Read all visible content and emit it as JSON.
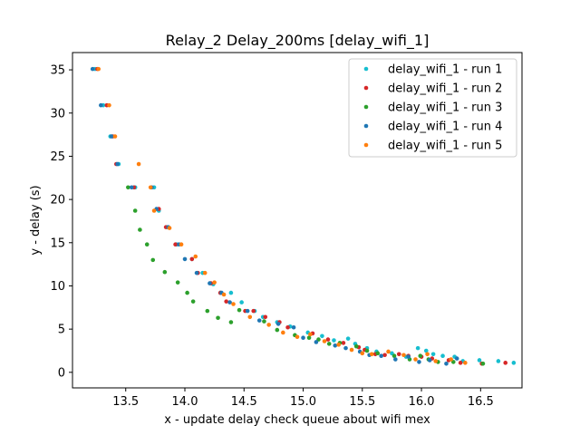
{
  "chart_data": {
    "type": "scatter",
    "title": "Relay_2 Delay_200ms [delay_wifi_1]",
    "xlabel": "x - update delay check queue about wifi mex",
    "ylabel": "y - delay (s)",
    "xlim": [
      13.05,
      16.85
    ],
    "ylim": [
      -1.8,
      37.0
    ],
    "xticks": [
      13.5,
      14.0,
      14.5,
      15.0,
      15.5,
      16.0,
      16.5
    ],
    "xtick_labels": [
      "13.5",
      "14.0",
      "14.5",
      "15.0",
      "15.5",
      "16.0",
      "16.5"
    ],
    "yticks": [
      0,
      5,
      10,
      15,
      20,
      25,
      30,
      35
    ],
    "ytick_labels": [
      "0",
      "5",
      "10",
      "15",
      "20",
      "25",
      "30",
      "35"
    ],
    "grid": false,
    "legend_position": "top-right",
    "series": [
      {
        "name": "delay_wifi_1 - run 1",
        "color": "#17becf",
        "points": [
          [
            13.24,
            35.1
          ],
          [
            13.31,
            30.9
          ],
          [
            13.37,
            27.3
          ],
          [
            13.44,
            24.1
          ],
          [
            13.58,
            21.4
          ],
          [
            13.74,
            21.4
          ],
          [
            13.78,
            18.7
          ],
          [
            13.85,
            16.8
          ],
          [
            13.93,
            14.8
          ],
          [
            14.06,
            13.1
          ],
          [
            14.15,
            11.5
          ],
          [
            14.24,
            10.2
          ],
          [
            14.3,
            9.2
          ],
          [
            14.39,
            9.2
          ],
          [
            14.48,
            8.1
          ],
          [
            14.59,
            7.1
          ],
          [
            14.66,
            6.4
          ],
          [
            14.78,
            5.8
          ],
          [
            14.89,
            5.3
          ],
          [
            15.04,
            4.6
          ],
          [
            15.16,
            4.2
          ],
          [
            15.26,
            3.7
          ],
          [
            15.38,
            3.9
          ],
          [
            15.44,
            3.3
          ],
          [
            15.54,
            2.8
          ],
          [
            15.62,
            2.4
          ],
          [
            15.75,
            2.2
          ],
          [
            15.87,
            1.8
          ],
          [
            15.97,
            2.8
          ],
          [
            16.04,
            2.5
          ],
          [
            16.1,
            2.1
          ],
          [
            16.18,
            1.9
          ],
          [
            16.28,
            1.8
          ],
          [
            16.35,
            1.3
          ],
          [
            16.49,
            1.4
          ],
          [
            16.65,
            1.3
          ],
          [
            16.78,
            1.1
          ]
        ]
      },
      {
        "name": "delay_wifi_1 - run 2",
        "color": "#d62728",
        "points": [
          [
            13.26,
            35.1
          ],
          [
            13.34,
            30.9
          ],
          [
            13.39,
            27.3
          ],
          [
            13.42,
            24.1
          ],
          [
            13.57,
            21.4
          ],
          [
            13.78,
            18.9
          ],
          [
            13.84,
            16.8
          ],
          [
            13.92,
            14.8
          ],
          [
            14.06,
            13.1
          ],
          [
            14.11,
            11.5
          ],
          [
            14.22,
            10.3
          ],
          [
            14.3,
            9.2
          ],
          [
            14.35,
            8.2
          ],
          [
            14.51,
            7.1
          ],
          [
            14.58,
            7.1
          ],
          [
            14.68,
            6.4
          ],
          [
            14.8,
            5.8
          ],
          [
            14.87,
            5.2
          ],
          [
            15.08,
            4.5
          ],
          [
            15.21,
            3.8
          ],
          [
            15.34,
            3.4
          ],
          [
            15.47,
            2.9
          ],
          [
            15.52,
            2.6
          ],
          [
            15.61,
            2.1
          ],
          [
            15.69,
            2.0
          ],
          [
            15.81,
            2.1
          ],
          [
            15.89,
            1.9
          ],
          [
            16.0,
            1.8
          ],
          [
            16.09,
            1.6
          ],
          [
            16.23,
            1.4
          ],
          [
            16.33,
            1.1
          ],
          [
            16.51,
            1.0
          ],
          [
            16.71,
            1.1
          ]
        ]
      },
      {
        "name": "delay_wifi_1 - run 3",
        "color": "#2ca02c",
        "points": [
          [
            13.52,
            21.4
          ],
          [
            13.58,
            18.7
          ],
          [
            13.62,
            16.5
          ],
          [
            13.68,
            14.8
          ],
          [
            13.73,
            13.0
          ],
          [
            13.83,
            11.6
          ],
          [
            13.94,
            10.4
          ],
          [
            14.02,
            9.2
          ],
          [
            14.07,
            8.2
          ],
          [
            14.19,
            7.1
          ],
          [
            14.28,
            6.3
          ],
          [
            14.39,
            5.8
          ],
          [
            14.46,
            7.2
          ],
          [
            14.67,
            5.9
          ],
          [
            14.78,
            4.9
          ],
          [
            14.93,
            4.3
          ],
          [
            15.05,
            4.0
          ],
          [
            15.13,
            3.8
          ],
          [
            15.22,
            3.3
          ],
          [
            15.31,
            3.4
          ],
          [
            15.45,
            3.0
          ],
          [
            15.54,
            2.5
          ],
          [
            15.63,
            2.2
          ],
          [
            15.77,
            1.9
          ],
          [
            15.9,
            1.5
          ],
          [
            15.99,
            1.9
          ],
          [
            16.06,
            1.5
          ],
          [
            16.14,
            1.2
          ],
          [
            16.27,
            1.2
          ],
          [
            16.52,
            1.0
          ]
        ]
      },
      {
        "name": "delay_wifi_1 - run 4",
        "color": "#1f77b4",
        "points": [
          [
            13.22,
            35.1
          ],
          [
            13.29,
            30.9
          ],
          [
            13.38,
            27.3
          ],
          [
            13.43,
            24.1
          ],
          [
            13.55,
            21.4
          ],
          [
            13.72,
            21.4
          ],
          [
            13.76,
            18.9
          ],
          [
            13.86,
            16.8
          ],
          [
            13.95,
            14.8
          ],
          [
            14.0,
            13.1
          ],
          [
            14.1,
            11.5
          ],
          [
            14.21,
            10.3
          ],
          [
            14.31,
            9.2
          ],
          [
            14.38,
            8.1
          ],
          [
            14.53,
            7.1
          ],
          [
            14.63,
            6.0
          ],
          [
            14.79,
            5.6
          ],
          [
            14.92,
            5.2
          ],
          [
            15.0,
            4.0
          ],
          [
            15.11,
            3.5
          ],
          [
            15.27,
            3.1
          ],
          [
            15.36,
            2.8
          ],
          [
            15.48,
            2.4
          ],
          [
            15.56,
            2.0
          ],
          [
            15.66,
            1.9
          ],
          [
            15.78,
            1.5
          ],
          [
            15.89,
            1.8
          ],
          [
            15.98,
            1.2
          ],
          [
            16.07,
            1.4
          ],
          [
            16.21,
            1.0
          ],
          [
            16.3,
            1.6
          ]
        ]
      },
      {
        "name": "delay_wifi_1 - run 5",
        "color": "#ff7f0e",
        "points": [
          [
            13.27,
            35.1
          ],
          [
            13.36,
            30.9
          ],
          [
            13.41,
            27.3
          ],
          [
            13.61,
            24.1
          ],
          [
            13.71,
            21.4
          ],
          [
            13.74,
            18.7
          ],
          [
            13.87,
            16.7
          ],
          [
            13.97,
            14.8
          ],
          [
            14.09,
            13.4
          ],
          [
            14.17,
            11.5
          ],
          [
            14.25,
            10.4
          ],
          [
            14.33,
            9.0
          ],
          [
            14.41,
            7.9
          ],
          [
            14.55,
            6.4
          ],
          [
            14.71,
            5.5
          ],
          [
            14.83,
            4.6
          ],
          [
            14.95,
            4.1
          ],
          [
            15.06,
            4.4
          ],
          [
            15.18,
            3.6
          ],
          [
            15.3,
            3.2
          ],
          [
            15.41,
            2.6
          ],
          [
            15.5,
            2.2
          ],
          [
            15.58,
            2.1
          ],
          [
            15.72,
            2.4
          ],
          [
            15.85,
            2.0
          ],
          [
            15.95,
            1.5
          ],
          [
            16.05,
            2.1
          ],
          [
            16.12,
            1.3
          ],
          [
            16.25,
            1.5
          ],
          [
            16.37,
            1.1
          ]
        ]
      }
    ]
  }
}
